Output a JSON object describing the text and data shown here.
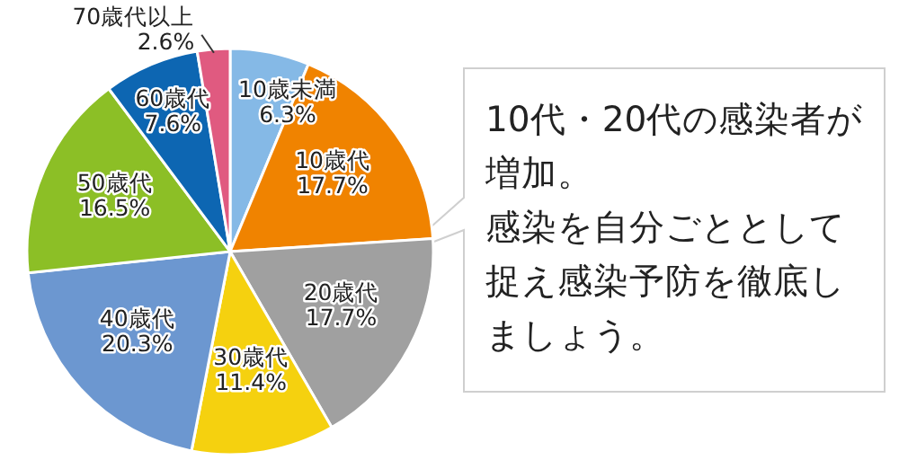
{
  "chart_data": {
    "type": "pie",
    "categories": [
      "10歳未満",
      "10歳代",
      "20歳代",
      "30歳代",
      "40歳代",
      "50歳代",
      "60歳代",
      "70歳代以上"
    ],
    "values": [
      6.3,
      17.7,
      17.7,
      11.4,
      20.3,
      16.5,
      7.6,
      2.6
    ],
    "value_labels": [
      "6.3%",
      "17.7%",
      "17.7%",
      "11.4%",
      "20.3%",
      "16.5%",
      "7.6%",
      "2.6%"
    ],
    "colors": [
      "#85b9e6",
      "#f08300",
      "#a0a0a0",
      "#f5d10f",
      "#6c97d0",
      "#8cbf26",
      "#0d66b2",
      "#e05a80"
    ],
    "annotations": [
      "10代・20代の感染者が増加。",
      "感染を自分ごととして捉え感染予防を徹底しましょう。"
    ]
  }
}
